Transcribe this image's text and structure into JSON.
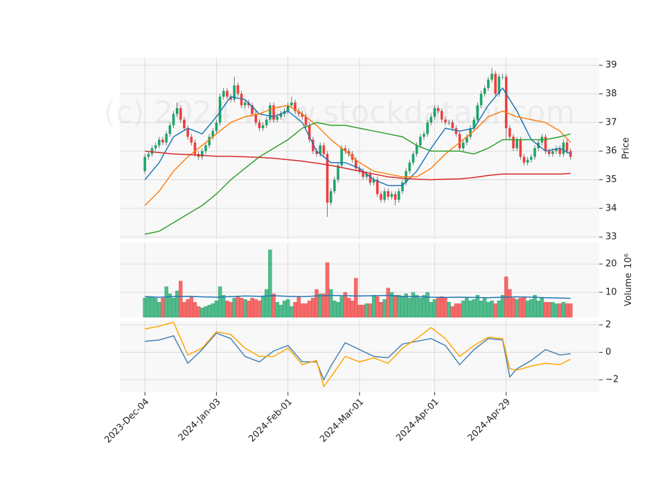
{
  "chart_data": {
    "type": "candlestick",
    "watermark": "(c) 2024 www.stockdatapi.com",
    "grid": true,
    "up_color": "#1ba66a",
    "down_color": "#f23d3d",
    "xlim": [
      -7,
      127
    ],
    "xticks": [
      {
        "value": 0,
        "label": "2023-Dec-04"
      },
      {
        "value": 20,
        "label": "2024-Jan-03"
      },
      {
        "value": 40,
        "label": "2024-Feb-01"
      },
      {
        "value": 60,
        "label": "2024-Mar-01"
      },
      {
        "value": 81,
        "label": "2024-Apr-01"
      },
      {
        "value": 101,
        "label": "2024-Apr-29"
      }
    ],
    "price": {
      "ylabel": "Price",
      "ylim": [
        32.93,
        39.27
      ],
      "yticks": [
        33,
        34,
        35,
        36,
        37,
        38,
        39
      ],
      "open": [
        35.3,
        35.8,
        35.9,
        36.1,
        36.2,
        36.4,
        36.3,
        36.6,
        36.9,
        37.3,
        37.5,
        37.1,
        36.8,
        36.5,
        36.3,
        35.9,
        35.8,
        36.0,
        36.2,
        36.5,
        36.7,
        37.0,
        37.9,
        38.1,
        37.9,
        37.8,
        38.3,
        38.0,
        37.6,
        37.7,
        37.6,
        37.3,
        37.0,
        36.8,
        36.9,
        37.1,
        37.6,
        37.1,
        37.2,
        37.3,
        37.4,
        37.6,
        37.7,
        37.4,
        37.3,
        37.2,
        36.9,
        36.4,
        36.0,
        35.9,
        36.2,
        35.9,
        34.2,
        34.6,
        35.0,
        35.5,
        36.1,
        36.0,
        35.9,
        35.7,
        35.4,
        35.3,
        35.1,
        35.2,
        34.9,
        35.0,
        34.5,
        34.3,
        34.6,
        34.4,
        34.5,
        34.3,
        34.6,
        34.9,
        35.3,
        35.6,
        35.9,
        36.2,
        36.5,
        36.6,
        37.0,
        37.2,
        37.5,
        37.4,
        37.1,
        37.0,
        37.0,
        36.8,
        36.6,
        36.1,
        36.3,
        36.5,
        36.8,
        37.1,
        37.6,
        38.0,
        38.2,
        38.5,
        38.7,
        38.0,
        38.6,
        38.6,
        36.8,
        36.5,
        36.1,
        36.4,
        35.8,
        35.6,
        35.7,
        35.8,
        36.1,
        36.3,
        36.5,
        36.0,
        35.9,
        36.0,
        36.1,
        35.9,
        36.3,
        36.0
      ],
      "high": [
        35.9,
        36.0,
        36.2,
        36.3,
        36.5,
        36.5,
        36.7,
        37.0,
        37.4,
        37.7,
        37.6,
        37.2,
        36.9,
        36.6,
        36.4,
        36.0,
        36.1,
        36.3,
        36.6,
        36.8,
        37.1,
        38.0,
        38.2,
        38.2,
        38.0,
        38.6,
        38.4,
        38.1,
        37.8,
        37.8,
        37.7,
        37.4,
        37.1,
        37.0,
        37.2,
        37.7,
        37.7,
        37.3,
        37.4,
        37.5,
        37.7,
        37.9,
        37.8,
        37.5,
        37.4,
        37.3,
        37.0,
        36.5,
        36.1,
        36.3,
        36.3,
        36.0,
        34.7,
        35.1,
        35.6,
        36.2,
        36.2,
        36.1,
        36.0,
        35.8,
        35.5,
        35.4,
        35.3,
        35.3,
        35.1,
        35.1,
        34.6,
        34.7,
        34.7,
        34.6,
        34.6,
        34.7,
        35.0,
        35.4,
        35.7,
        36.0,
        36.3,
        36.6,
        36.7,
        37.1,
        37.3,
        37.6,
        37.6,
        37.5,
        37.2,
        37.1,
        37.1,
        36.9,
        36.7,
        36.4,
        36.6,
        36.9,
        37.2,
        37.7,
        38.1,
        38.3,
        38.6,
        38.9,
        38.8,
        38.7,
        38.7,
        38.7,
        36.9,
        36.6,
        36.5,
        36.5,
        35.9,
        35.8,
        35.9,
        36.2,
        36.4,
        36.6,
        36.6,
        36.1,
        36.1,
        36.2,
        36.2,
        36.4,
        36.4,
        36.1
      ],
      "low": [
        35.2,
        35.7,
        35.8,
        36.0,
        36.1,
        36.2,
        36.2,
        36.5,
        36.8,
        37.2,
        37.0,
        36.7,
        36.4,
        36.2,
        35.8,
        35.7,
        35.7,
        35.9,
        36.1,
        36.4,
        36.6,
        36.9,
        37.8,
        37.8,
        37.7,
        37.7,
        37.9,
        37.5,
        37.5,
        37.5,
        37.2,
        36.9,
        36.7,
        36.7,
        36.8,
        37.0,
        37.0,
        37.0,
        37.1,
        37.2,
        37.3,
        37.5,
        37.3,
        37.2,
        37.1,
        36.8,
        36.3,
        35.9,
        35.8,
        35.8,
        35.8,
        33.7,
        34.1,
        34.5,
        34.9,
        35.4,
        35.9,
        35.8,
        35.6,
        35.3,
        35.2,
        35.0,
        35.0,
        34.8,
        34.8,
        34.4,
        34.2,
        34.2,
        34.3,
        34.3,
        34.1,
        34.2,
        34.5,
        34.8,
        35.2,
        35.5,
        35.8,
        36.1,
        36.4,
        36.5,
        36.9,
        37.1,
        37.3,
        37.0,
        36.9,
        36.9,
        36.7,
        36.5,
        36.0,
        36.0,
        36.2,
        36.4,
        36.7,
        37.0,
        37.5,
        37.9,
        38.1,
        38.4,
        37.9,
        37.9,
        38.5,
        36.4,
        36.4,
        36.0,
        36.0,
        35.7,
        35.5,
        35.5,
        35.6,
        35.7,
        36.0,
        36.2,
        35.9,
        35.8,
        35.8,
        35.9,
        35.8,
        35.8,
        35.9,
        35.7
      ],
      "close": [
        35.8,
        35.9,
        36.1,
        36.2,
        36.4,
        36.3,
        36.6,
        36.9,
        37.3,
        37.5,
        37.1,
        36.8,
        36.5,
        36.3,
        35.9,
        35.8,
        36.0,
        36.2,
        36.5,
        36.7,
        37.0,
        37.9,
        38.1,
        37.9,
        37.8,
        38.3,
        38.0,
        37.6,
        37.7,
        37.6,
        37.3,
        37.0,
        36.8,
        36.9,
        37.1,
        37.6,
        37.1,
        37.2,
        37.3,
        37.4,
        37.6,
        37.7,
        37.4,
        37.3,
        37.2,
        36.9,
        36.4,
        36.0,
        35.9,
        36.2,
        35.9,
        34.2,
        34.6,
        35.0,
        35.5,
        36.1,
        36.0,
        35.9,
        35.7,
        35.4,
        35.3,
        35.1,
        35.2,
        34.9,
        35.0,
        34.5,
        34.3,
        34.6,
        34.4,
        34.5,
        34.3,
        34.6,
        34.9,
        35.3,
        35.6,
        35.9,
        36.2,
        36.5,
        36.6,
        37.0,
        37.2,
        37.5,
        37.4,
        37.1,
        37.0,
        37.0,
        36.8,
        36.6,
        36.1,
        36.3,
        36.5,
        36.8,
        37.1,
        37.6,
        38.0,
        38.2,
        38.5,
        38.7,
        38.0,
        38.6,
        38.6,
        36.8,
        36.5,
        36.1,
        36.4,
        35.8,
        35.6,
        35.7,
        35.8,
        36.1,
        36.3,
        36.5,
        36.0,
        35.9,
        36.0,
        36.1,
        35.9,
        36.3,
        36.0,
        35.8
      ],
      "averages": {
        "x": [
          0,
          4,
          8,
          12,
          16,
          20,
          24,
          28,
          32,
          36,
          40,
          44,
          48,
          52,
          56,
          60,
          64,
          68,
          72,
          76,
          80,
          84,
          88,
          92,
          96,
          100,
          104,
          108,
          112,
          116,
          119
        ],
        "series": [
          {
            "color": "#1f77b4",
            "values": [
              35.0,
              35.6,
              36.5,
              36.8,
              36.6,
              37.2,
              37.9,
              37.8,
              37.3,
              37.2,
              37.4,
              37.0,
              36.0,
              35.6,
              35.6,
              35.4,
              35.0,
              34.8,
              34.8,
              35.3,
              36.1,
              36.8,
              36.7,
              36.8,
              37.6,
              38.2,
              37.4,
              36.4,
              36.0,
              36.1,
              35.9
            ]
          },
          {
            "color": "#ff7f0e",
            "values": [
              34.1,
              34.6,
              35.3,
              35.8,
              36.2,
              36.6,
              37.0,
              37.2,
              37.3,
              37.5,
              37.6,
              37.3,
              36.9,
              36.4,
              36.0,
              35.6,
              35.3,
              35.2,
              35.1,
              35.1,
              35.4,
              35.9,
              36.3,
              36.7,
              37.2,
              37.4,
              37.2,
              37.1,
              37.0,
              36.7,
              36.3
            ]
          },
          {
            "color": "#2ca02c",
            "values": [
              33.1,
              33.2,
              33.5,
              33.8,
              34.1,
              34.5,
              35.0,
              35.4,
              35.8,
              36.1,
              36.4,
              36.8,
              37.0,
              36.9,
              36.9,
              36.8,
              36.7,
              36.6,
              36.5,
              36.2,
              36.0,
              36.0,
              36.0,
              35.9,
              36.1,
              36.4,
              36.4,
              36.4,
              36.4,
              36.5,
              36.6
            ]
          },
          {
            "color": "#d62728",
            "values": [
              36.0,
              35.95,
              35.9,
              35.88,
              35.85,
              35.82,
              35.82,
              35.8,
              35.78,
              35.75,
              35.7,
              35.65,
              35.58,
              35.5,
              35.4,
              35.3,
              35.2,
              35.1,
              35.05,
              35.02,
              35.0,
              35.02,
              35.03,
              35.08,
              35.15,
              35.2,
              35.2,
              35.2,
              35.2,
              35.2,
              35.22
            ]
          }
        ]
      }
    },
    "volume": {
      "ylabel": "Volume",
      "scale": "10⁶",
      "ylim": [
        1.2,
        27.6
      ],
      "yticks": [
        10,
        20
      ],
      "values": [
        8,
        8.5,
        8.5,
        8,
        6.5,
        8,
        12,
        9.5,
        8,
        10.5,
        14,
        6.5,
        7.5,
        8.5,
        6.5,
        5,
        4.5,
        5,
        5.5,
        6,
        7,
        12,
        9,
        7,
        6.5,
        8,
        8.5,
        8,
        7.5,
        7,
        8,
        7.5,
        7,
        8.5,
        11,
        25,
        9.5,
        6.5,
        5.5,
        7,
        7.5,
        5,
        6.5,
        8.5,
        6,
        6,
        7,
        8,
        11,
        9.5,
        9.5,
        20.5,
        11,
        7,
        6.5,
        8.5,
        10,
        8,
        7,
        15,
        5.5,
        5.5,
        6,
        6,
        9,
        8.5,
        6.5,
        7.5,
        11.5,
        10,
        9,
        9,
        8.5,
        9.5,
        8,
        10,
        9,
        8,
        9,
        10,
        6.5,
        7.5,
        8,
        8.5,
        8,
        6.5,
        5,
        6,
        6,
        7,
        8,
        7,
        7.5,
        9,
        7,
        8,
        6.5,
        7,
        6,
        7,
        9,
        15.5,
        11,
        8,
        7.5,
        8,
        8.5,
        7,
        7.5,
        9,
        7,
        8,
        6.5,
        6.5,
        6.5,
        6,
        6,
        6.5,
        6,
        6
      ],
      "average": {
        "color": "#1f77b4",
        "x": [
          0,
          4,
          8,
          12,
          16,
          20,
          24,
          28,
          32,
          36,
          40,
          44,
          48,
          52,
          56,
          60,
          64,
          68,
          72,
          76,
          80,
          84,
          88,
          92,
          96,
          100,
          104,
          108,
          112,
          116,
          119
        ],
        "values": [
          8.5,
          8.3,
          8.5,
          8.6,
          8.4,
          8.3,
          8.5,
          8.7,
          8.6,
          8.8,
          8.6,
          8.5,
          8.7,
          8.9,
          8.8,
          8.7,
          8.8,
          8.9,
          8.6,
          8.5,
          8.3,
          8.2,
          8.3,
          8.2,
          8.1,
          8.3,
          8.4,
          8.3,
          8.1,
          8.0,
          7.9
        ]
      }
    },
    "oscillator": {
      "ylim": [
        -2.9,
        2.3
      ],
      "yticks": [
        {
          "value": -2,
          "label": "−2"
        },
        0,
        2
      ],
      "x": [
        0,
        4,
        8,
        12,
        16,
        20,
        24,
        28,
        32,
        36,
        40,
        44,
        48,
        50,
        52,
        56,
        60,
        64,
        68,
        72,
        76,
        80,
        84,
        88,
        92,
        96,
        100,
        102,
        104,
        108,
        112,
        116,
        119
      ],
      "series": [
        {
          "color": "#4682b4",
          "values": [
            0.8,
            0.9,
            1.2,
            -0.8,
            0.2,
            1.4,
            1.0,
            -0.3,
            -0.7,
            0.1,
            0.5,
            -0.7,
            -0.7,
            -2.0,
            -1.0,
            0.7,
            0.2,
            -0.3,
            -0.4,
            0.6,
            0.8,
            1.0,
            0.5,
            -0.9,
            0.2,
            1.0,
            0.9,
            -1.8,
            -1.2,
            -0.6,
            0.2,
            -0.2,
            -0.1
          ]
        },
        {
          "color": "#ffa500",
          "values": [
            1.7,
            1.9,
            2.2,
            -0.2,
            0.3,
            1.5,
            1.3,
            0.3,
            -0.3,
            -0.3,
            0.3,
            -0.9,
            -0.6,
            -2.5,
            -1.8,
            -0.3,
            -0.7,
            -0.4,
            -0.8,
            0.3,
            1.0,
            1.8,
            1.0,
            -0.3,
            0.5,
            1.1,
            1.0,
            -1.2,
            -1.3,
            -1.0,
            -0.8,
            -0.9,
            -0.5
          ]
        }
      ]
    }
  }
}
